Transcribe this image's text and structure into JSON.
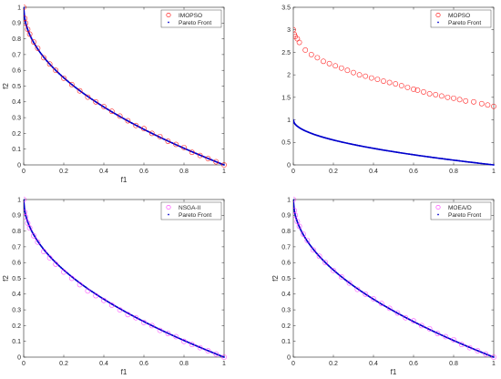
{
  "chart_data": [
    {
      "type": "scatter",
      "xlabel": "f1",
      "ylabel": "f2",
      "xlim": [
        0,
        1
      ],
      "ylim": [
        0,
        1
      ],
      "xticks": [
        "0",
        "0.2",
        "0.4",
        "0.6",
        "0.8",
        "1"
      ],
      "yticks": [
        "0",
        "0.1",
        "0.2",
        "0.3",
        "0.4",
        "0.5",
        "0.6",
        "0.7",
        "0.8",
        "0.9",
        "1"
      ],
      "legend_position": "top-right",
      "series": [
        {
          "name": "IMOPSO",
          "marker": "circle",
          "color": "#ff0000",
          "x": [
            0.0,
            0.005,
            0.01,
            0.02,
            0.03,
            0.05,
            0.07,
            0.1,
            0.13,
            0.16,
            0.2,
            0.24,
            0.28,
            0.32,
            0.36,
            0.4,
            0.44,
            0.48,
            0.52,
            0.56,
            0.6,
            0.64,
            0.68,
            0.72,
            0.76,
            0.8,
            0.84,
            0.88,
            0.92,
            0.96,
            1.0
          ],
          "y": [
            1.0,
            0.93,
            0.9,
            0.86,
            0.83,
            0.78,
            0.74,
            0.68,
            0.64,
            0.6,
            0.55,
            0.51,
            0.47,
            0.43,
            0.4,
            0.37,
            0.34,
            0.31,
            0.28,
            0.25,
            0.23,
            0.2,
            0.18,
            0.15,
            0.13,
            0.11,
            0.08,
            0.06,
            0.04,
            0.02,
            0.0
          ]
        },
        {
          "name": "Pareto Front",
          "marker": "dot",
          "color": "#0000cc",
          "function": "1 - sqrt(x)"
        }
      ]
    },
    {
      "type": "scatter",
      "xlabel": "",
      "ylabel": "",
      "xlim": [
        0,
        1
      ],
      "ylim": [
        0,
        3.5
      ],
      "xticks": [
        "0",
        "0.2",
        "0.4",
        "0.6",
        "0.8",
        "1"
      ],
      "yticks": [
        "0",
        "0.5",
        "1",
        "1.5",
        "2",
        "2.5",
        "3",
        "3.5"
      ],
      "legend_position": "top-right",
      "series": [
        {
          "name": "MOPSO",
          "marker": "circle",
          "color": "#ff0000",
          "x": [
            0.0,
            0.005,
            0.01,
            0.02,
            0.03,
            0.06,
            0.09,
            0.12,
            0.15,
            0.18,
            0.21,
            0.24,
            0.27,
            0.3,
            0.33,
            0.36,
            0.39,
            0.42,
            0.45,
            0.48,
            0.51,
            0.54,
            0.57,
            0.6,
            0.62,
            0.65,
            0.68,
            0.71,
            0.74,
            0.77,
            0.8,
            0.83,
            0.86,
            0.9,
            0.94,
            0.97,
            1.0
          ],
          "y": [
            3.0,
            2.9,
            2.85,
            2.8,
            2.72,
            2.55,
            2.45,
            2.38,
            2.3,
            2.25,
            2.2,
            2.15,
            2.1,
            2.05,
            2.0,
            1.97,
            1.93,
            1.9,
            1.86,
            1.83,
            1.8,
            1.76,
            1.72,
            1.68,
            1.66,
            1.62,
            1.58,
            1.56,
            1.53,
            1.5,
            1.48,
            1.45,
            1.42,
            1.4,
            1.36,
            1.33,
            1.3
          ]
        },
        {
          "name": "Pareto Front",
          "marker": "dot",
          "color": "#0000cc",
          "function": "1 - sqrt(x)"
        }
      ]
    },
    {
      "type": "scatter",
      "xlabel": "f1",
      "ylabel": "f2",
      "xlim": [
        0,
        1
      ],
      "ylim": [
        0,
        1
      ],
      "xticks": [
        "0",
        "0.2",
        "0.4",
        "0.6",
        "0.8",
        "1"
      ],
      "yticks": [
        "0",
        "0.1",
        "0.2",
        "0.3",
        "0.4",
        "0.5",
        "0.6",
        "0.7",
        "0.8",
        "0.9",
        "1"
      ],
      "legend_position": "top-right",
      "series": [
        {
          "name": "NSGA-II",
          "marker": "circle",
          "color": "#ff33ff",
          "x": [
            0.0,
            0.005,
            0.01,
            0.02,
            0.03,
            0.05,
            0.07,
            0.1,
            0.13,
            0.16,
            0.2,
            0.24,
            0.28,
            0.32,
            0.36,
            0.4,
            0.44,
            0.48,
            0.52,
            0.56,
            0.6,
            0.64,
            0.68,
            0.72,
            0.76,
            0.8,
            0.84,
            0.88,
            0.92,
            0.96,
            1.0
          ],
          "y": [
            1.0,
            0.92,
            0.89,
            0.85,
            0.82,
            0.77,
            0.73,
            0.67,
            0.63,
            0.59,
            0.54,
            0.5,
            0.46,
            0.42,
            0.39,
            0.36,
            0.33,
            0.3,
            0.27,
            0.25,
            0.22,
            0.2,
            0.17,
            0.15,
            0.13,
            0.1,
            0.08,
            0.06,
            0.04,
            0.02,
            0.0
          ]
        },
        {
          "name": "Pareto Front",
          "marker": "dot",
          "color": "#0000cc",
          "function": "1 - sqrt(x)"
        }
      ]
    },
    {
      "type": "scatter",
      "xlabel": "f1",
      "ylabel": "f2",
      "xlim": [
        0,
        1
      ],
      "ylim": [
        0,
        1
      ],
      "xticks": [
        "0",
        "0.2",
        "0.4",
        "0.6",
        "0.8",
        "1"
      ],
      "yticks": [
        "0",
        "0.1",
        "0.2",
        "0.3",
        "0.4",
        "0.5",
        "0.6",
        "0.7",
        "0.8",
        "0.9",
        "1"
      ],
      "legend_position": "top-right",
      "series": [
        {
          "name": "MOEA/D",
          "marker": "circle",
          "color": "#ff33ff",
          "x": [
            0.0,
            0.005,
            0.01,
            0.02,
            0.03,
            0.05,
            0.07,
            0.1,
            0.13,
            0.16,
            0.2,
            0.24,
            0.28,
            0.32,
            0.36,
            0.4,
            0.44,
            0.48,
            0.52,
            0.56,
            0.6,
            0.64,
            0.68,
            0.72,
            0.76,
            0.8,
            0.84,
            0.88,
            0.92,
            0.96,
            1.0
          ],
          "y": [
            1.0,
            0.93,
            0.9,
            0.86,
            0.83,
            0.78,
            0.74,
            0.68,
            0.64,
            0.6,
            0.55,
            0.51,
            0.47,
            0.43,
            0.4,
            0.37,
            0.34,
            0.31,
            0.28,
            0.25,
            0.23,
            0.2,
            0.18,
            0.15,
            0.13,
            0.11,
            0.08,
            0.06,
            0.04,
            0.02,
            0.0
          ]
        },
        {
          "name": "Pareto Front",
          "marker": "dot",
          "color": "#0000cc",
          "function": "1 - sqrt(x)"
        }
      ]
    }
  ]
}
